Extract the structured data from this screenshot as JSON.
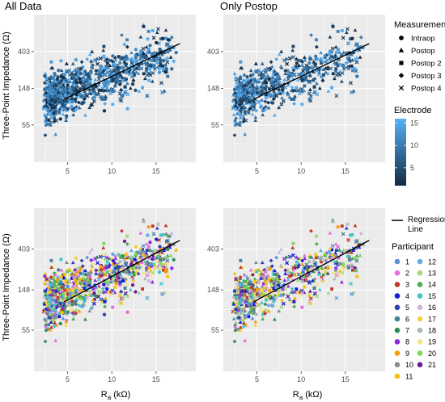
{
  "chart_data": [
    {
      "type": "scatter",
      "title": "All Data",
      "xlabel": "",
      "ylabel": "Three-Point Impedance (Ω)",
      "x_ticks": [
        5,
        10,
        15
      ],
      "y_ticks": [
        55,
        148,
        403
      ],
      "xlim": [
        1.2,
        19.5
      ],
      "ylim": [
        20,
        1100
      ],
      "y_scale": "log",
      "grid": true,
      "color_by": "Electrode",
      "regression_line": {
        "x": [
          4.6,
          17.7
        ],
        "y": [
          110,
          500
        ]
      },
      "points": []
    },
    {
      "type": "scatter",
      "title": "Only Postop",
      "xlabel": "",
      "ylabel": "",
      "x_ticks": [
        5,
        10,
        15
      ],
      "y_ticks": [
        55,
        148,
        403
      ],
      "xlim": [
        1.2,
        19.5
      ],
      "ylim": [
        20,
        1100
      ],
      "y_scale": "log",
      "grid": true,
      "color_by": "Electrode",
      "regression_line": {
        "x": [
          4.6,
          17.7
        ],
        "y": [
          110,
          500
        ]
      },
      "points": []
    },
    {
      "type": "scatter",
      "title": "",
      "xlabel": "Ra (kΩ)",
      "ylabel": "Three-Point Impedance (Ω)",
      "x_ticks": [
        5,
        10,
        15
      ],
      "y_ticks": [
        55,
        148,
        403
      ],
      "xlim": [
        1.2,
        19.5
      ],
      "ylim": [
        20,
        1100
      ],
      "y_scale": "log",
      "grid": true,
      "color_by": "Participant",
      "regression_line": {
        "x": [
          4.6,
          17.7
        ],
        "y": [
          110,
          500
        ]
      },
      "points": []
    },
    {
      "type": "scatter",
      "title": "",
      "xlabel": "Ra (kΩ)",
      "ylabel": "",
      "x_ticks": [
        5,
        10,
        15
      ],
      "y_ticks": [
        55,
        148,
        403
      ],
      "xlim": [
        1.2,
        19.5
      ],
      "ylim": [
        20,
        1100
      ],
      "y_scale": "log",
      "grid": true,
      "color_by": "Participant",
      "regression_line": {
        "x": [
          4.6,
          17.7
        ],
        "y": [
          110,
          500
        ]
      },
      "points": []
    }
  ],
  "legends": {
    "measurement": {
      "title": "Measurement",
      "items": [
        {
          "label": "Intraop",
          "shape": "circle"
        },
        {
          "label": "Postop",
          "shape": "triangle"
        },
        {
          "label": "Postop 2",
          "shape": "square"
        },
        {
          "label": "Postop 3",
          "shape": "diamond"
        },
        {
          "label": "Postop 4",
          "shape": "cross"
        }
      ]
    },
    "electrode": {
      "title": "Electrode",
      "ticks": [
        "15",
        "10",
        "5"
      ],
      "tick_values": [
        15,
        10,
        5
      ],
      "range": [
        1,
        16
      ],
      "color_low": "#132b43",
      "color_high": "#56b1f7"
    },
    "regression": {
      "label_line1": "Regression",
      "label_line2": "Line"
    },
    "participant": {
      "title": "Participant",
      "items": [
        {
          "label": "1",
          "color": "#5b8fd6"
        },
        {
          "label": "2",
          "color": "#e26fdc"
        },
        {
          "label": "3",
          "color": "#c0392b"
        },
        {
          "label": "4",
          "color": "#1a1ad6"
        },
        {
          "label": "5",
          "color": "#2f3fb0"
        },
        {
          "label": "6",
          "color": "#4a7f9a"
        },
        {
          "label": "7",
          "color": "#2e8b57"
        },
        {
          "label": "8",
          "color": "#8a2be2"
        },
        {
          "label": "9",
          "color": "#f39c12"
        },
        {
          "label": "10",
          "color": "#8c8c8c"
        },
        {
          "label": "11",
          "color": "#f1c40f"
        },
        {
          "label": "12",
          "color": "#5dade2"
        },
        {
          "label": "13",
          "color": "#a3d977"
        },
        {
          "label": "14",
          "color": "#4caf50"
        },
        {
          "label": "15",
          "color": "#40c4c4"
        },
        {
          "label": "16",
          "color": "#d2b4de"
        },
        {
          "label": "17",
          "color": "#f4d03f"
        },
        {
          "label": "18",
          "color": "#aab7b8"
        },
        {
          "label": "19",
          "color": "#f0e68c"
        },
        {
          "label": "20",
          "color": "#7ed957"
        },
        {
          "label": "21",
          "color": "#6a1b9a"
        }
      ]
    }
  },
  "colors": {
    "panel_bg": "#ebebeb",
    "grid": "#ffffff",
    "regression": "#000000"
  }
}
